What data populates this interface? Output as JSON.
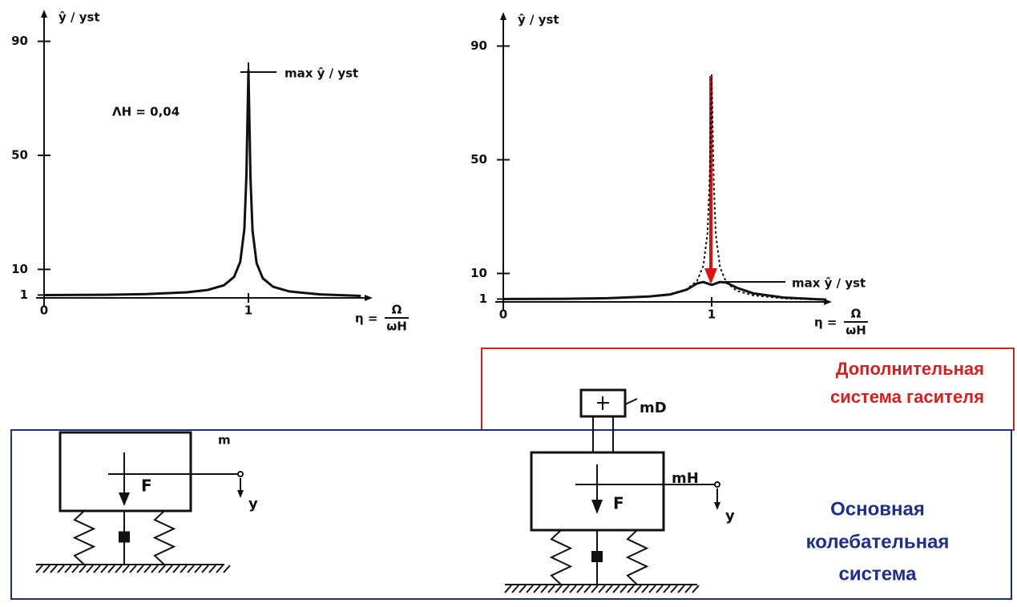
{
  "chart_data": [
    {
      "type": "line",
      "y_label": "ŷ / yst",
      "x_label": "η =",
      "x_label_fraction": [
        "Ω",
        "ωH"
      ],
      "annotations": [
        "max ŷ / yst",
        "ΛH = 0,04"
      ],
      "x": [
        0,
        0.3,
        0.5,
        0.7,
        0.8,
        0.88,
        0.93,
        0.96,
        0.98,
        0.99,
        1,
        1.01,
        1.02,
        1.04,
        1.07,
        1.12,
        1.2,
        1.35,
        1.55
      ],
      "series": [
        {
          "color": "#111111",
          "style": "solid",
          "values": [
            1,
            1.1,
            1.33,
            1.96,
            2.78,
            4.43,
            7.4,
            12.7,
            24.1,
            42.7,
            80,
            42.1,
            23.6,
            12.2,
            6.9,
            3.93,
            2.27,
            1.22,
            0.71
          ]
        }
      ],
      "xlim": [
        0,
        1.6
      ],
      "ylim": [
        0,
        98
      ],
      "xticks": [
        0,
        1
      ],
      "yticks": [
        1,
        10,
        50,
        90
      ]
    },
    {
      "type": "line",
      "y_label": "ŷ / yst",
      "x_label": "η =",
      "x_label_fraction": [
        "Ω",
        "ωH"
      ],
      "annotations": [
        "max ŷ / yst"
      ],
      "x": [
        0,
        0.3,
        0.5,
        0.7,
        0.8,
        0.88,
        0.93,
        0.96,
        0.98,
        0.99,
        1,
        1.01,
        1.02,
        1.04,
        1.07,
        1.12,
        1.2,
        1.35,
        1.55
      ],
      "series": [
        {
          "color": "#111111",
          "style": "dashed",
          "values": [
            1,
            1.1,
            1.33,
            1.96,
            2.78,
            4.43,
            7.4,
            12.7,
            24.1,
            42.7,
            80,
            42.1,
            23.6,
            12.2,
            6.9,
            3.93,
            2.27,
            1.22,
            0.71
          ]
        },
        {
          "color": "#111111",
          "style": "solid",
          "values": [
            1,
            1.1,
            1.3,
            1.9,
            2.6,
            4.3,
            6.5,
            7,
            6.5,
            6.2,
            6,
            6.2,
            6.5,
            7,
            6.8,
            5,
            3,
            1.5,
            0.8
          ]
        }
      ],
      "xlim": [
        0,
        1.6
      ],
      "ylim": [
        0,
        98
      ],
      "xticks": [
        0,
        1
      ],
      "yticks": [
        1,
        10,
        50,
        90
      ]
    }
  ],
  "diagram": {
    "left": {
      "mass": "m",
      "force": "F",
      "displacement": "y"
    },
    "right": {
      "damper_mass": "mD",
      "main_mass": "mH",
      "force": "F",
      "displacement": "y"
    },
    "damper_box": [
      "Дополнительная",
      "система гасителя"
    ],
    "main_box": [
      "Основная",
      "колебательная",
      "система"
    ]
  }
}
